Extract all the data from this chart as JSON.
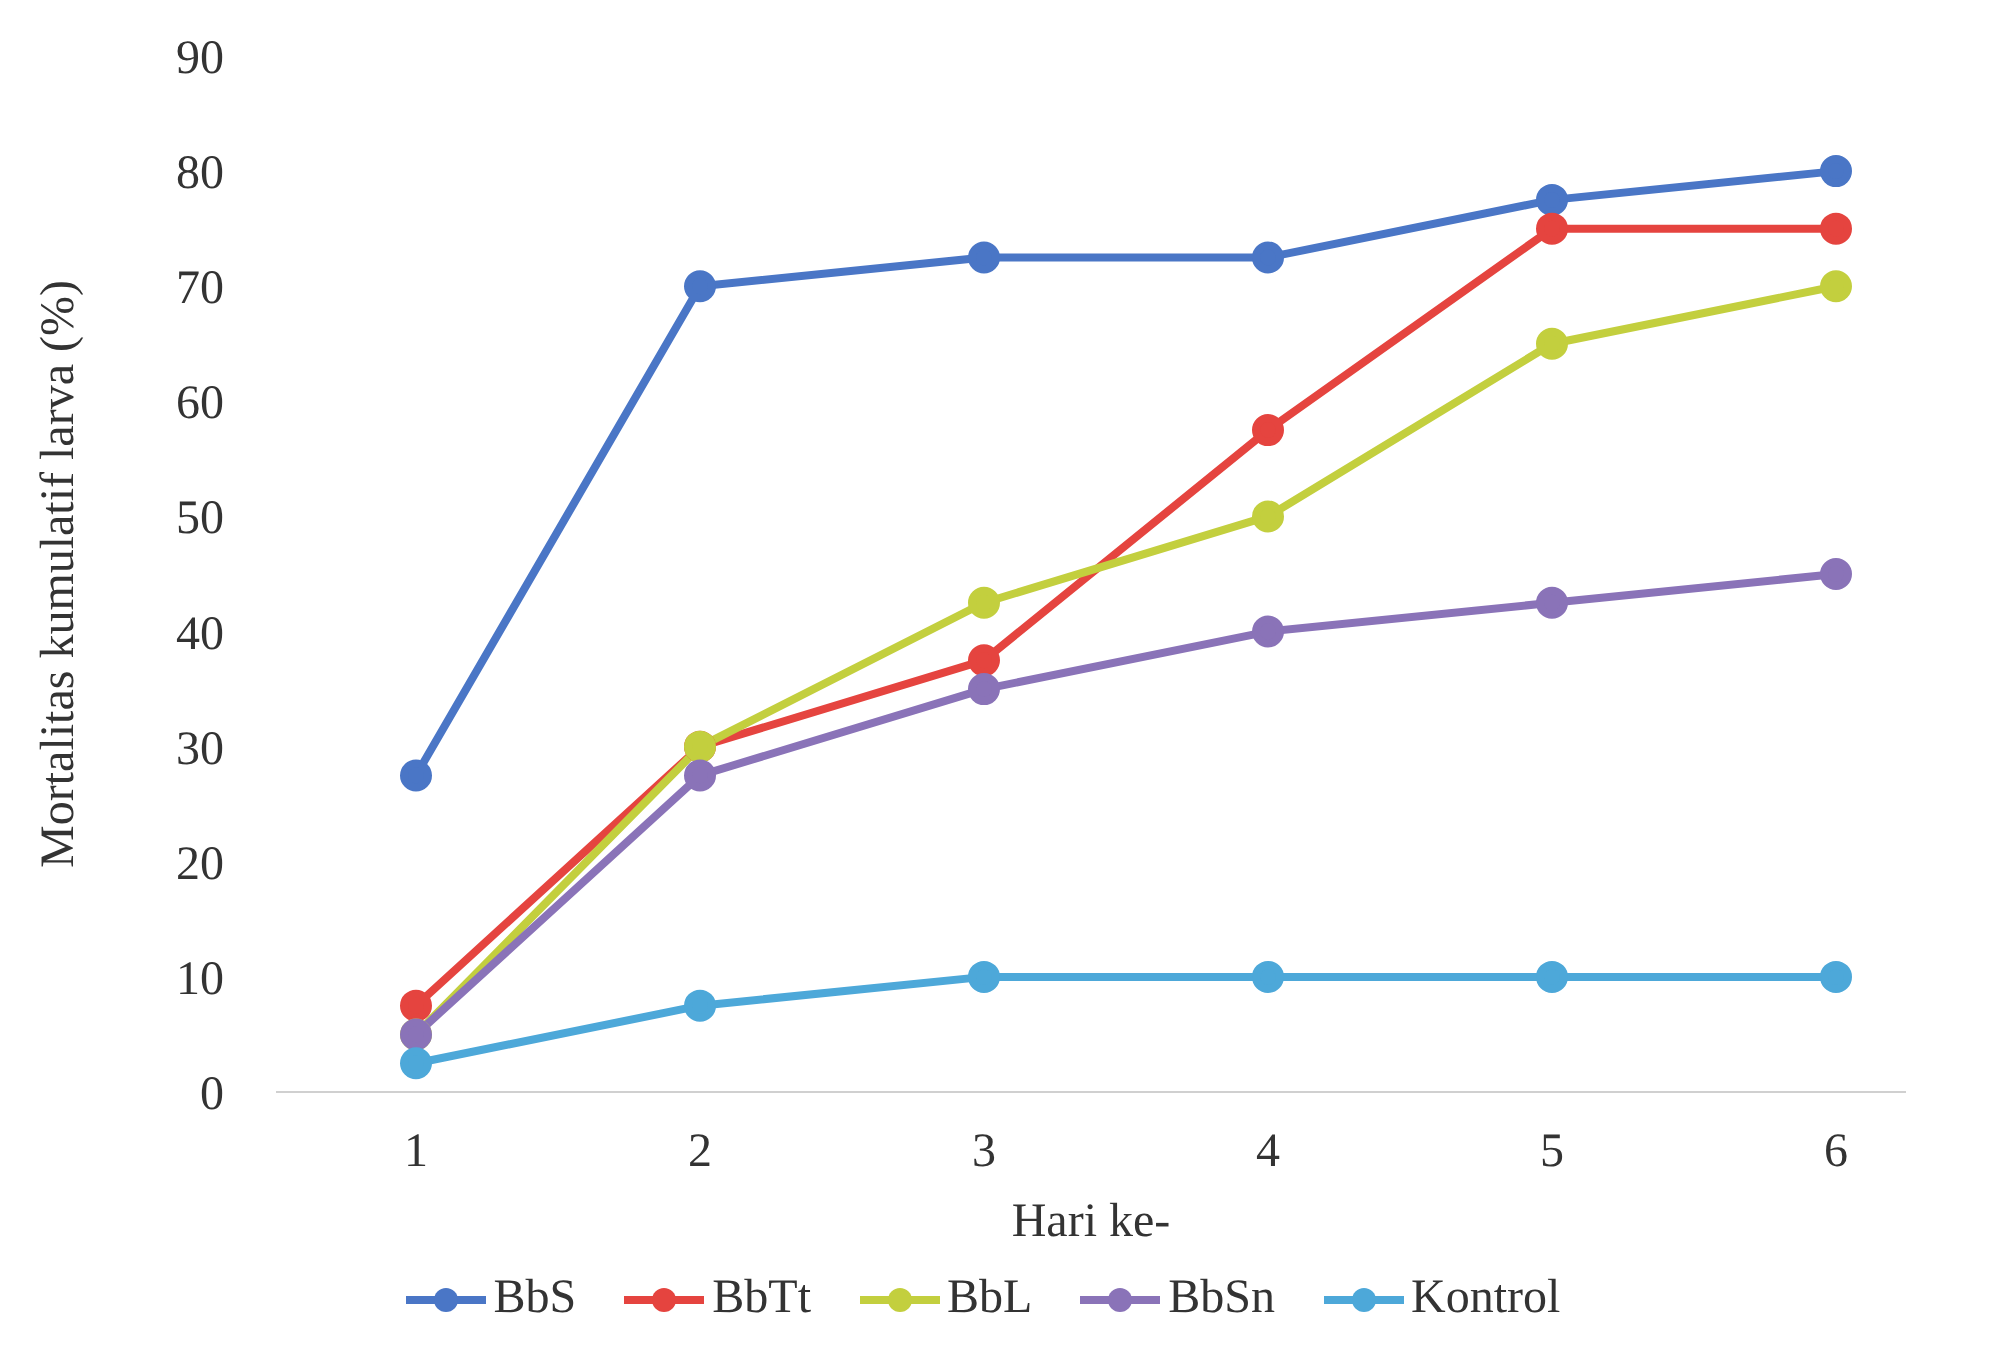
{
  "chart_data": {
    "type": "line",
    "xlabel": "Hari ke-",
    "ylabel": "Mortalitas kumulatif larva (%)",
    "categories": [
      "1",
      "2",
      "3",
      "4",
      "5",
      "6"
    ],
    "series": [
      {
        "name": "BbS",
        "color": "#4a76c6",
        "values": [
          27.5,
          70,
          72.5,
          72.5,
          77.5,
          80
        ]
      },
      {
        "name": "BbTt",
        "color": "#e5443f",
        "values": [
          7.5,
          30,
          37.5,
          57.5,
          75,
          75
        ]
      },
      {
        "name": "BbL",
        "color": "#c3cf3e",
        "values": [
          5,
          30,
          42.5,
          50,
          65,
          70
        ]
      },
      {
        "name": "BbSn",
        "color": "#8a73b8",
        "values": [
          5,
          27.5,
          35,
          40,
          42.5,
          45
        ]
      },
      {
        "name": "Kontrol",
        "color": "#4da8d9",
        "values": [
          2.5,
          7.5,
          10,
          10,
          10,
          10
        ]
      }
    ],
    "ylim": [
      0,
      90
    ],
    "yticks": [
      0,
      10,
      20,
      30,
      40,
      50,
      60,
      70,
      80,
      90
    ],
    "grid": false,
    "legend": "bottom",
    "marker": "circle",
    "line_style": "solid"
  }
}
